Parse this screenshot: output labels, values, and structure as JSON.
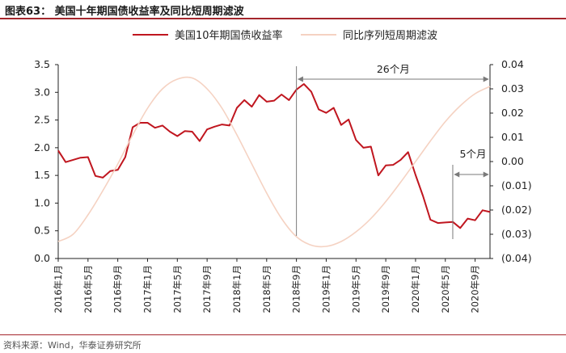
{
  "figure_title": "图表63：  美国十年期国债收益率及同比短周期滤波",
  "source": "资料来源：Wind，华泰证券研究所",
  "colors": {
    "yield": "#c0161f",
    "filter": "#f5d2c2",
    "accent": "#a4262c",
    "annotation": "#7a7a7a"
  },
  "chart_data": {
    "type": "line",
    "grid": false,
    "legend": "top",
    "x_unit": "month",
    "x_range": [
      "2016-01",
      "2020-11"
    ],
    "x_tick_labels": [
      "2016年1月",
      "2016年5月",
      "2016年9月",
      "2017年1月",
      "2017年5月",
      "2017年9月",
      "2018年1月",
      "2018年5月",
      "2018年9月",
      "2019年1月",
      "2019年5月",
      "2019年9月",
      "2020年1月",
      "2020年5月",
      "2020年9月"
    ],
    "y_left": {
      "ticks": [
        "0.0",
        "0.5",
        "1.0",
        "1.5",
        "2.0",
        "2.5",
        "3.0",
        "3.5"
      ],
      "range": [
        0,
        3.5
      ]
    },
    "y_right": {
      "ticks": [
        "0.04",
        "0.03",
        "0.02",
        "0.01",
        "0.00",
        "(0.01)",
        "(0.02)",
        "(0.03)",
        "(0.04)"
      ],
      "range": [
        -0.04,
        0.04
      ]
    },
    "series": [
      {
        "name": "美国10年期国债收益率",
        "axis": "left",
        "color": "#c0161f",
        "x": [
          "2016-01",
          "2016-02",
          "2016-03",
          "2016-04",
          "2016-05",
          "2016-06",
          "2016-07",
          "2016-08",
          "2016-09",
          "2016-10",
          "2016-11",
          "2016-12",
          "2017-01",
          "2017-02",
          "2017-03",
          "2017-04",
          "2017-05",
          "2017-06",
          "2017-07",
          "2017-08",
          "2017-09",
          "2017-10",
          "2017-11",
          "2017-12",
          "2018-01",
          "2018-02",
          "2018-03",
          "2018-04",
          "2018-05",
          "2018-06",
          "2018-07",
          "2018-08",
          "2018-09",
          "2018-10",
          "2018-11",
          "2018-12",
          "2019-01",
          "2019-02",
          "2019-03",
          "2019-04",
          "2019-05",
          "2019-06",
          "2019-07",
          "2019-08",
          "2019-09",
          "2019-10",
          "2019-11",
          "2019-12",
          "2020-01",
          "2020-02",
          "2020-03",
          "2020-04",
          "2020-05",
          "2020-06",
          "2020-07",
          "2020-08",
          "2020-09",
          "2020-10",
          "2020-11"
        ],
        "values": [
          1.95,
          1.74,
          1.78,
          1.82,
          1.83,
          1.49,
          1.46,
          1.58,
          1.6,
          1.83,
          2.37,
          2.45,
          2.45,
          2.36,
          2.4,
          2.29,
          2.21,
          2.3,
          2.29,
          2.12,
          2.33,
          2.38,
          2.42,
          2.4,
          2.72,
          2.86,
          2.74,
          2.95,
          2.83,
          2.85,
          2.96,
          2.86,
          3.05,
          3.15,
          3.01,
          2.69,
          2.63,
          2.72,
          2.41,
          2.51,
          2.14,
          2.0,
          2.02,
          1.5,
          1.68,
          1.69,
          1.78,
          1.92,
          1.51,
          1.13,
          0.7,
          0.64,
          0.65,
          0.66,
          0.55,
          0.72,
          0.69,
          0.87,
          0.84
        ]
      },
      {
        "name": "同比序列短周期滤波",
        "axis": "right",
        "color": "#f5d2c2",
        "x": [
          "2016-01",
          "2016-03",
          "2016-05",
          "2016-07",
          "2016-09",
          "2016-11",
          "2017-01",
          "2017-03",
          "2017-05",
          "2017-07",
          "2017-09",
          "2017-11",
          "2018-01",
          "2018-03",
          "2018-05",
          "2018-07",
          "2018-09",
          "2018-11",
          "2019-01",
          "2019-03",
          "2019-05",
          "2019-07",
          "2019-09",
          "2019-11",
          "2020-01",
          "2020-03",
          "2020-05",
          "2020-07",
          "2020-09",
          "2020-11"
        ],
        "values": [
          -0.033,
          -0.03,
          -0.022,
          -0.012,
          -0.001,
          0.011,
          0.022,
          0.03,
          0.034,
          0.0345,
          0.03,
          0.022,
          0.011,
          -0.001,
          -0.013,
          -0.0235,
          -0.031,
          -0.0345,
          -0.035,
          -0.033,
          -0.029,
          -0.0235,
          -0.0165,
          -0.0085,
          0.0,
          0.0085,
          0.0165,
          0.023,
          0.028,
          0.031
        ]
      }
    ],
    "annotations": [
      {
        "label": "26个月",
        "from": "2018-09",
        "to": "2020-11"
      },
      {
        "label": "5个月",
        "from": "2020-06",
        "to": "2020-11"
      }
    ]
  }
}
